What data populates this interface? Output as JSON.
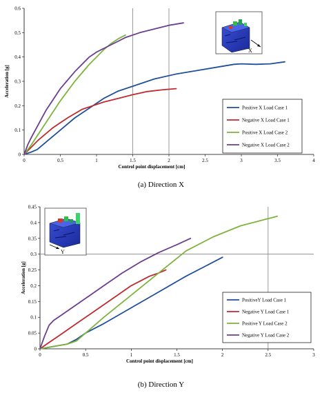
{
  "captions": {
    "x": "(a) Direction X",
    "y": "(b) Direction Y"
  },
  "chart_data": [
    {
      "type": "line",
      "xlabel": "Control point displacement [cm]",
      "ylabel": "Acceleration [g]",
      "xlim": [
        0,
        4
      ],
      "ylim": [
        0,
        0.6
      ],
      "xticks": [
        "0",
        "0.5",
        "1",
        "1.5",
        "2",
        "2.5",
        "3",
        "3.5",
        "4"
      ],
      "yticks": [
        "0",
        "0.1",
        "0.2",
        "0.3",
        "0.4",
        "0.5",
        "0.6"
      ],
      "grid": "vertical lines at x = 1.5 and 2.0",
      "legend_position": "bottom-right",
      "inset_label": "X",
      "series": [
        {
          "name": "Positive X Load Case 1",
          "color": "#1f4e9c",
          "x": [
            0,
            0.1,
            0.18,
            0.3,
            0.5,
            0.7,
            0.9,
            1.1,
            1.3,
            1.5,
            1.8,
            2.1,
            2.4,
            2.7,
            2.9,
            3.0,
            3.2,
            3.4,
            3.6
          ],
          "y": [
            0,
            0.01,
            0.02,
            0.05,
            0.1,
            0.15,
            0.19,
            0.23,
            0.26,
            0.28,
            0.31,
            0.33,
            0.345,
            0.36,
            0.37,
            0.372,
            0.37,
            0.372,
            0.38
          ]
        },
        {
          "name": "Negative X Load Case 1",
          "color": "#c0282d",
          "x": [
            0,
            0.1,
            0.2,
            0.4,
            0.6,
            0.8,
            0.95,
            1.1,
            1.3,
            1.5,
            1.7,
            1.9,
            2.1
          ],
          "y": [
            0,
            0.03,
            0.06,
            0.11,
            0.15,
            0.185,
            0.2,
            0.215,
            0.23,
            0.245,
            0.258,
            0.265,
            0.27
          ]
        },
        {
          "name": "Positive X Load Case 2",
          "color": "#7db33b",
          "x": [
            0,
            0.1,
            0.3,
            0.5,
            0.7,
            0.9,
            1.0,
            1.1,
            1.2,
            1.3,
            1.4
          ],
          "y": [
            0,
            0.04,
            0.13,
            0.22,
            0.3,
            0.37,
            0.4,
            0.43,
            0.455,
            0.475,
            0.49
          ]
        },
        {
          "name": "Negative X Load Case 2",
          "color": "#6a3d8f",
          "x": [
            0,
            0.05,
            0.1,
            0.3,
            0.5,
            0.7,
            0.9,
            1.0,
            1.2,
            1.4,
            1.6,
            1.8,
            2.0,
            2.2
          ],
          "y": [
            0,
            0.04,
            0.07,
            0.18,
            0.27,
            0.34,
            0.4,
            0.42,
            0.45,
            0.48,
            0.5,
            0.515,
            0.53,
            0.54
          ]
        }
      ]
    },
    {
      "type": "line",
      "xlabel": "Control point displacement [cm]",
      "ylabel": "Acceleration [g]",
      "xlim": [
        0,
        3
      ],
      "ylim": [
        0,
        0.45
      ],
      "xticks": [
        "0",
        "0.5",
        "1",
        "1.5",
        "2",
        "2.5",
        "3"
      ],
      "yticks": [
        "0",
        "0.05",
        "0.1",
        "0.15",
        "0.2",
        "0.25",
        "0.3",
        "0.35",
        "0.4",
        "0.45"
      ],
      "grid": "vertical line at x = 2.5; horizontal line at y = 0.3",
      "legend_position": "bottom-right",
      "inset_label": "Y",
      "series": [
        {
          "name": "PositiveY Load Case 1",
          "color": "#1f4e9c",
          "x": [
            0,
            0.1,
            0.2,
            0.3,
            0.4,
            0.5,
            0.7,
            1.0,
            1.3,
            1.6,
            1.8,
            2.0
          ],
          "y": [
            0,
            0.005,
            0.01,
            0.015,
            0.03,
            0.05,
            0.08,
            0.13,
            0.18,
            0.23,
            0.26,
            0.29
          ]
        },
        {
          "name": "Negative Y Load Case 1",
          "color": "#c0282d",
          "x": [
            0,
            0.1,
            0.2,
            0.4,
            0.6,
            0.8,
            1.0,
            1.1,
            1.2,
            1.3,
            1.38
          ],
          "y": [
            0,
            0.02,
            0.04,
            0.08,
            0.12,
            0.16,
            0.2,
            0.215,
            0.23,
            0.24,
            0.25
          ]
        },
        {
          "name": "Positive Y Load Case 2",
          "color": "#7db33b",
          "x": [
            0,
            0.1,
            0.2,
            0.3,
            0.4,
            0.5,
            0.7,
            1.0,
            1.3,
            1.6,
            1.9,
            2.2,
            2.4,
            2.6
          ],
          "y": [
            0,
            0.005,
            0.01,
            0.015,
            0.025,
            0.05,
            0.1,
            0.17,
            0.24,
            0.31,
            0.355,
            0.39,
            0.405,
            0.42
          ]
        },
        {
          "name": "Negative Y Load Case 2",
          "color": "#6a3d8f",
          "x": [
            0,
            0.05,
            0.1,
            0.15,
            0.2,
            0.3,
            0.5,
            0.7,
            0.9,
            1.1,
            1.3,
            1.5,
            1.65
          ],
          "y": [
            0,
            0.04,
            0.075,
            0.09,
            0.1,
            0.12,
            0.16,
            0.2,
            0.24,
            0.275,
            0.305,
            0.33,
            0.35
          ]
        }
      ]
    }
  ]
}
